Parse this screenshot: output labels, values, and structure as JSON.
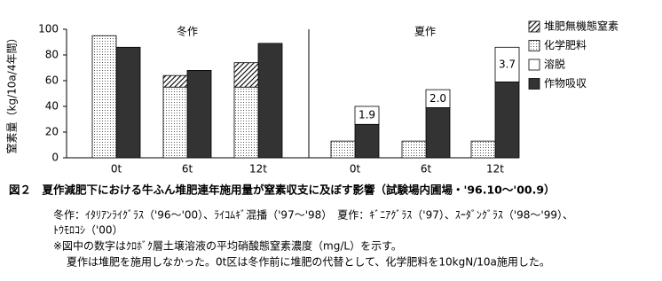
{
  "chart_data": {
    "type": "bar",
    "y_label": "窒素量（kg/10a/4年間）",
    "groups": [
      "冬作",
      "夏作"
    ],
    "categories": [
      "0t",
      "6t",
      "12t",
      "0t",
      "6t",
      "12t"
    ],
    "ylim": [
      0,
      100
    ],
    "yticks": [
      0,
      20,
      40,
      60,
      80,
      100
    ],
    "series": [
      {
        "name": "堆肥無機態窒素",
        "color": "#000000",
        "pattern": "hatch",
        "stack": "left",
        "values": [
          null,
          9,
          19,
          null,
          null,
          null
        ]
      },
      {
        "name": "化学肥料",
        "color": "#000000",
        "pattern": "dots",
        "stack": "left",
        "values": [
          95,
          55,
          55,
          13,
          13,
          13
        ]
      },
      {
        "name": "溶脱",
        "color": "#ffffff",
        "pattern": null,
        "stack": "right",
        "values": [
          null,
          null,
          null,
          14,
          14,
          27
        ]
      },
      {
        "name": "作物吸収",
        "color": "#333333",
        "pattern": null,
        "stack": "right",
        "values": [
          86,
          68,
          89,
          26,
          39,
          59
        ]
      }
    ],
    "concentration_labels": [
      null,
      null,
      null,
      "1.9",
      "2.0",
      "3.7"
    ]
  },
  "caption": {
    "title": "図２　夏作減肥下における牛ふん堆肥連年施用量が窒素収支に及ぼす影響（試験場内圃場・'96.10～'00.9）",
    "notes": [
      "冬作：ｲﾀﾘｱﾝﾗｲｸﾞﾗｽ（'96～'00）、ﾗｲｺﾑｷﾞ混播（'97～'98）　夏作：ｷﾞﾆｱｸﾞﾗｽ（'97）、ｽｰﾀﾞﾝｸﾞﾗｽ（'98～'99）、",
      "ﾄｳﾓﾛｺｼ（'00）",
      "※図中の数字はｸﾛﾎﾞｸ層土壌溶液の平均硝酸態窒素濃度（mg/L）を示す。",
      "夏作は堆肥を施用しなかった。0t区は冬作前に堆肥の代替として、化学肥料を10kgN/10a施用した。"
    ]
  }
}
